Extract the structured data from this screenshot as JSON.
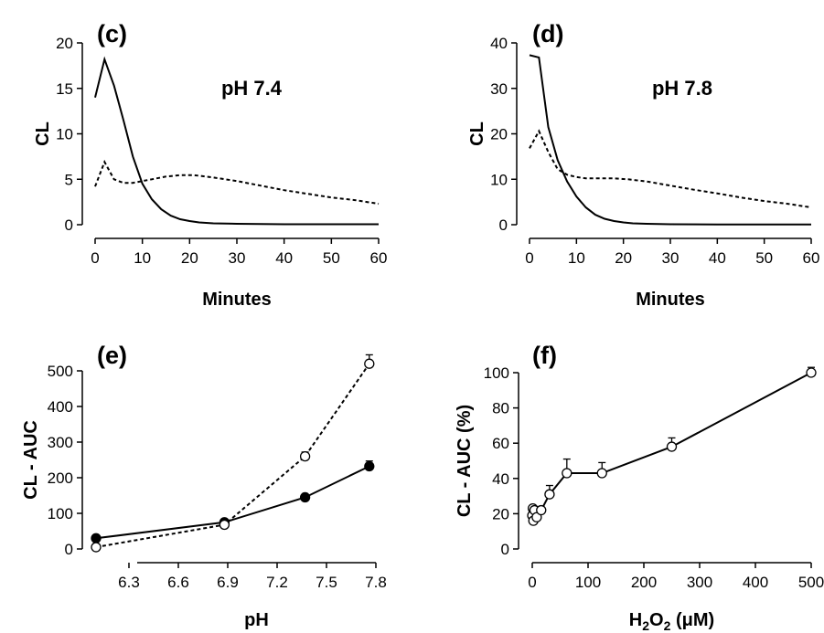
{
  "chart_data": [
    {
      "panel": "(c)",
      "type": "line",
      "title": "pH 7.4",
      "xlabel": "Minutes",
      "ylabel": "CL",
      "xlim": [
        0,
        60
      ],
      "ylim": [
        0,
        20
      ],
      "xticks": [
        0,
        10,
        20,
        30,
        40,
        50,
        60
      ],
      "yticks": [
        0,
        5,
        10,
        15,
        20
      ],
      "series": [
        {
          "style": "solid",
          "x": [
            0,
            2,
            4,
            6,
            8,
            10,
            12,
            14,
            16,
            18,
            20,
            22,
            25,
            30,
            40,
            50,
            60
          ],
          "y": [
            14,
            18.2,
            15.3,
            11.5,
            7.5,
            4.5,
            2.8,
            1.7,
            1.0,
            0.6,
            0.4,
            0.25,
            0.15,
            0.1,
            0.05,
            0.05,
            0.05
          ]
        },
        {
          "style": "dashed",
          "x": [
            0,
            2,
            4,
            6,
            8,
            10,
            12,
            15,
            18,
            21,
            25,
            30,
            35,
            40,
            45,
            50,
            55,
            60
          ],
          "y": [
            4.2,
            6.9,
            5.0,
            4.6,
            4.6,
            4.8,
            5.0,
            5.3,
            5.45,
            5.45,
            5.2,
            4.8,
            4.3,
            3.8,
            3.4,
            3.0,
            2.7,
            2.3
          ]
        }
      ]
    },
    {
      "panel": "(d)",
      "type": "line",
      "title": "pH 7.8",
      "xlabel": "Minutes",
      "ylabel": "CL",
      "xlim": [
        0,
        60
      ],
      "ylim": [
        0,
        40
      ],
      "xticks": [
        0,
        10,
        20,
        30,
        40,
        50,
        60
      ],
      "yticks": [
        0,
        10,
        20,
        30,
        40
      ],
      "series": [
        {
          "style": "solid",
          "x": [
            0,
            2,
            4,
            6,
            8,
            10,
            12,
            14,
            16,
            18,
            20,
            22,
            25,
            30,
            40,
            50,
            60
          ],
          "y": [
            37.3,
            36.8,
            21.5,
            14.2,
            9.5,
            6.2,
            3.8,
            2.2,
            1.3,
            0.8,
            0.5,
            0.3,
            0.2,
            0.1,
            0.05,
            0.05,
            0.05
          ]
        },
        {
          "style": "dashed",
          "x": [
            0,
            2,
            4,
            6,
            8,
            10,
            12,
            15,
            18,
            21,
            25,
            30,
            35,
            40,
            45,
            50,
            55,
            60
          ],
          "y": [
            16.8,
            20.6,
            16.0,
            12.2,
            11.0,
            10.5,
            10.2,
            10.2,
            10.2,
            10.0,
            9.5,
            8.6,
            7.7,
            6.9,
            6.0,
            5.2,
            4.6,
            3.8
          ]
        }
      ]
    },
    {
      "panel": "(e)",
      "type": "line",
      "title": "",
      "xlabel": "pH",
      "ylabel": "CL - AUC",
      "xlim": [
        6.1,
        7.8
      ],
      "ylim": [
        0,
        500
      ],
      "xticks": [
        "6.3",
        "6.6",
        "6.9",
        "7.2",
        "7.5",
        "7.8"
      ],
      "yticks": [
        0,
        100,
        200,
        300,
        400,
        500
      ],
      "series": [
        {
          "style": "solid",
          "marker": "filled-circle",
          "x": [
            6.1,
            6.88,
            7.37,
            7.76
          ],
          "y": [
            30,
            75,
            145,
            232
          ],
          "err": [
            5,
            5,
            8,
            15
          ]
        },
        {
          "style": "dashed",
          "marker": "open-circle",
          "x": [
            6.1,
            6.88,
            7.37,
            7.76
          ],
          "y": [
            5,
            68,
            260,
            520
          ],
          "err": [
            5,
            5,
            12,
            25
          ]
        }
      ]
    },
    {
      "panel": "(f)",
      "type": "line",
      "title": "",
      "xlabel": "H2O2 (μM)",
      "ylabel": "CL - AUC (%)",
      "xlim": [
        0,
        500
      ],
      "ylim": [
        0,
        100
      ],
      "xticks": [
        0,
        100,
        200,
        300,
        400,
        500
      ],
      "yticks": [
        0,
        20,
        40,
        60,
        80,
        100
      ],
      "series": [
        {
          "style": "solid",
          "marker": "open-circle",
          "x": [
            0,
            1,
            2,
            4,
            8,
            16,
            31,
            62,
            125,
            250,
            500
          ],
          "y": [
            19,
            23,
            16,
            22,
            18,
            22,
            31,
            43,
            43,
            58,
            100
          ],
          "err": [
            2,
            2,
            2,
            2,
            2,
            2,
            5,
            8,
            6,
            5,
            3
          ]
        }
      ]
    }
  ]
}
